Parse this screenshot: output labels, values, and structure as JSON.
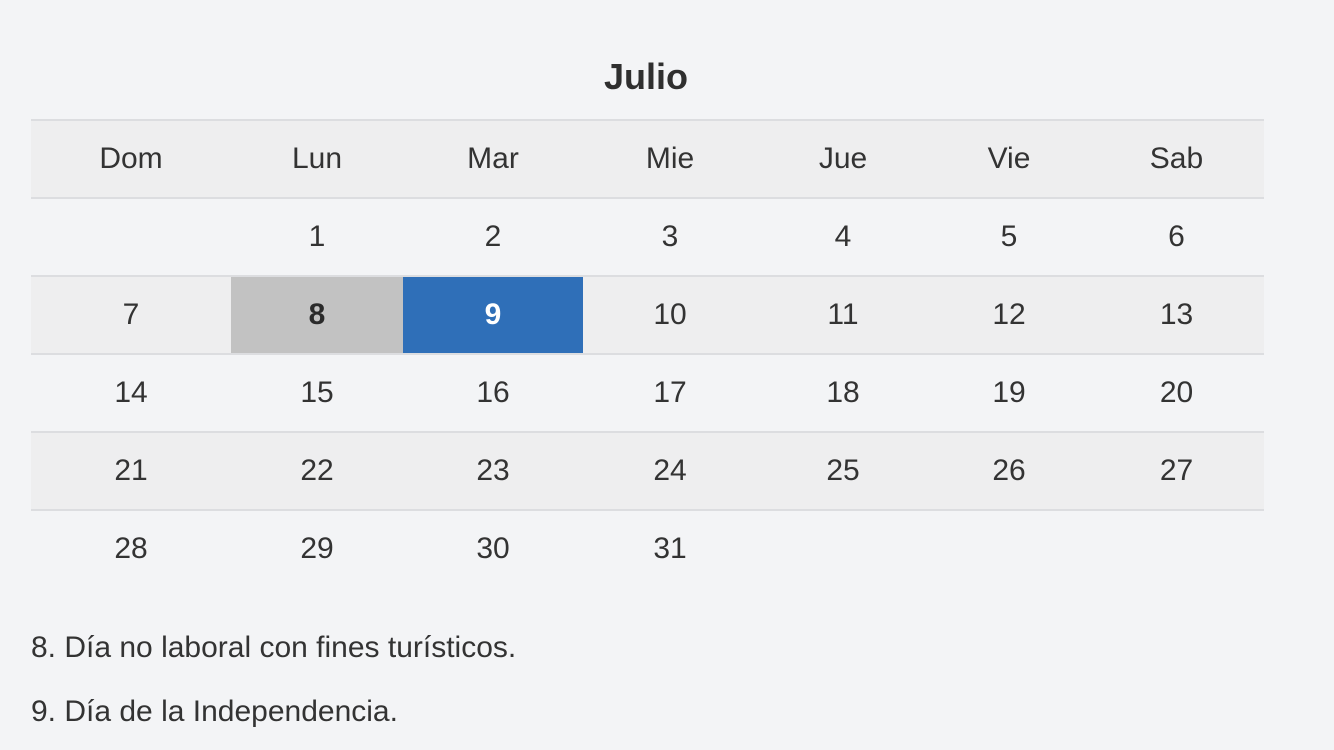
{
  "calendar": {
    "month": "Julio",
    "weekdays": [
      "Dom",
      "Lun",
      "Mar",
      "Mie",
      "Jue",
      "Vie",
      "Sab"
    ],
    "weeks": [
      [
        "",
        "1",
        "2",
        "3",
        "4",
        "5",
        "6"
      ],
      [
        "7",
        "8",
        "9",
        "10",
        "11",
        "12",
        "13"
      ],
      [
        "14",
        "15",
        "16",
        "17",
        "18",
        "19",
        "20"
      ],
      [
        "21",
        "22",
        "23",
        "24",
        "25",
        "26",
        "27"
      ],
      [
        "28",
        "29",
        "30",
        "31",
        "",
        "",
        ""
      ]
    ],
    "highlights": {
      "non_working_day": {
        "day": "8",
        "color": "#c2c2c2"
      },
      "holiday": {
        "day": "9",
        "color": "#2f6fb8"
      }
    }
  },
  "notes": [
    "8. Día no laboral con fines turísticos.",
    "9. Día de la Independencia."
  ]
}
